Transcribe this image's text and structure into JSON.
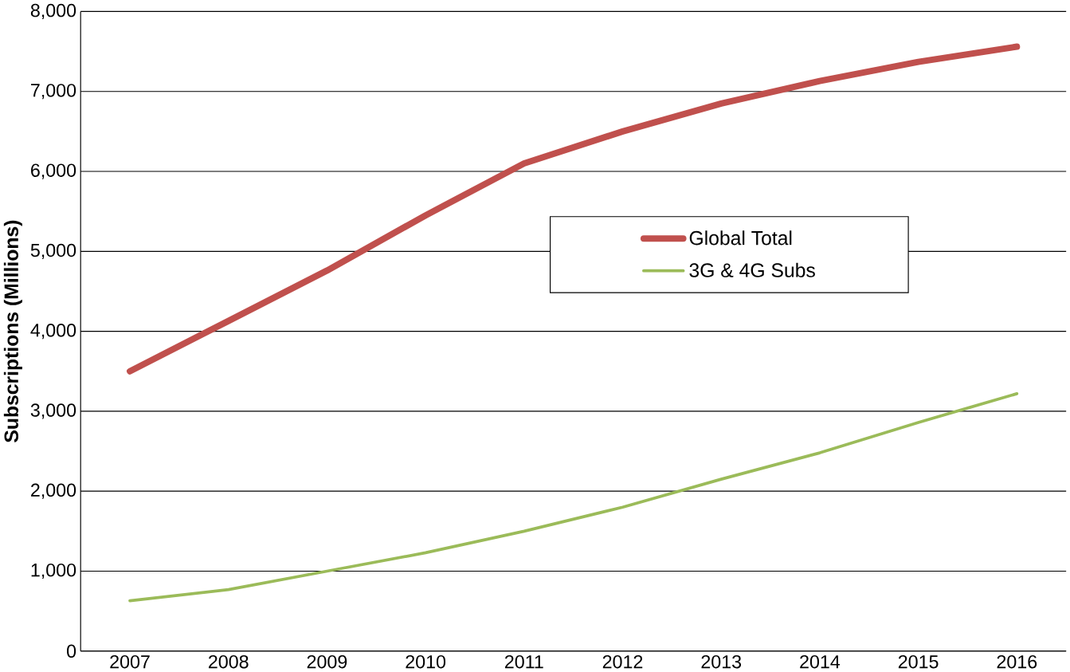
{
  "chart_data": {
    "type": "line",
    "ylabel": "Subscriptions  (Millions)",
    "categories": [
      "2007",
      "2008",
      "2009",
      "2010",
      "2011",
      "2012",
      "2013",
      "2014",
      "2015",
      "2016"
    ],
    "series": [
      {
        "name": "Global Total",
        "color": "#c0504d",
        "values": [
          3500,
          4130,
          4760,
          5450,
          6100,
          6500,
          6850,
          7130,
          7370,
          7560
        ]
      },
      {
        "name": "3G & 4G Subs",
        "color": "#9bbb59",
        "values": [
          630,
          770,
          1000,
          1230,
          1500,
          1800,
          2150,
          2480,
          2860,
          3220
        ]
      }
    ],
    "ylim": [
      0,
      8000
    ],
    "yticks": [
      {
        "value": 0,
        "label": "0"
      },
      {
        "value": 1000,
        "label": "1,000"
      },
      {
        "value": 2000,
        "label": "2,000"
      },
      {
        "value": 3000,
        "label": "3,000"
      },
      {
        "value": 4000,
        "label": "4,000"
      },
      {
        "value": 5000,
        "label": "5,000"
      },
      {
        "value": 6000,
        "label": "6,000"
      },
      {
        "value": 7000,
        "label": "7,000"
      },
      {
        "value": 8000,
        "label": "8,000"
      }
    ],
    "grid": "y",
    "legend": "right",
    "marker": "none",
    "line_style": "solid"
  }
}
